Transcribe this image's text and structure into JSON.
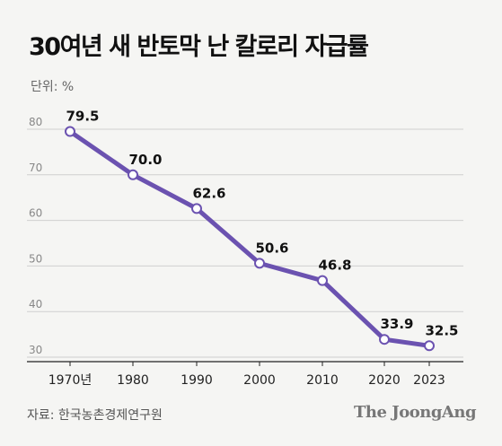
{
  "title": "30여년 새 반토막 난 칼로리 자급률",
  "unit": "단위: %",
  "source": "자료: 한국농촌경제연구원",
  "brand": "The JoongAng",
  "colors": {
    "line": "#6b52b0",
    "marker_fill": "#ffffff",
    "grid": "#cfcfcf",
    "background": "#f5f5f3"
  },
  "chart_data": {
    "type": "line",
    "x": [
      "1970년",
      "1980",
      "1990",
      "2000",
      "2010",
      "2020",
      "2023"
    ],
    "series": [
      {
        "values": [
          79.5,
          70.0,
          62.6,
          50.6,
          46.8,
          33.9,
          32.5
        ]
      }
    ],
    "data_labels": [
      "79.5",
      "70.0",
      "62.6",
      "50.6",
      "46.8",
      "33.9",
      "32.5"
    ],
    "yticks": [
      30,
      40,
      50,
      60,
      70,
      80
    ],
    "ylim": [
      30,
      80
    ],
    "grid": true,
    "legend": "none"
  }
}
